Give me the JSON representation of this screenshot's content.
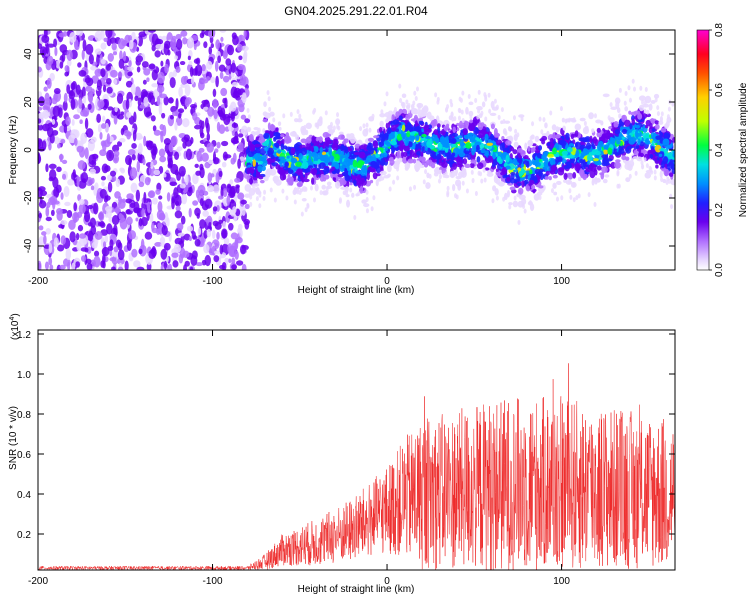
{
  "title": "GN04.2025.291.22.01.R04",
  "colors": {
    "ink": "#000000",
    "snr_line": "#ee2a2a",
    "colormap": [
      "#ffffff",
      "#e8d8ff",
      "#b070ff",
      "#6a00ee",
      "#2020ff",
      "#0090ff",
      "#00e0e0",
      "#00ff40",
      "#c0ff00",
      "#ffd000",
      "#ff5000",
      "#ff0020",
      "#ff00d0"
    ]
  },
  "chart_data": [
    {
      "type": "heatmap",
      "name": "spectrogram",
      "xlabel": "Height of straight line (km)",
      "ylabel": "Frequency (Hz)",
      "xlim": [
        -200,
        165
      ],
      "ylim": [
        -50,
        50
      ],
      "xticks": [
        "-200",
        "-100",
        "0",
        "100"
      ],
      "yticks": [
        "-40",
        "-20",
        "0",
        "20",
        "40"
      ],
      "noise_region_x": [
        -200,
        -80
      ],
      "signal_band_hz": [
        -12,
        12
      ],
      "colorbar": {
        "label": "Normalized spectral amplitude",
        "range": [
          0.0,
          0.8
        ],
        "ticks": [
          "0.0",
          "0.2",
          "0.4",
          "0.6",
          "0.8"
        ]
      }
    },
    {
      "type": "line",
      "name": "snr",
      "xlabel": "Height of straight line (km)",
      "ylabel": "SNR (10 * v/v)",
      "scale_label": "(x10",
      "scale_exp": "4",
      "scale_close": ")",
      "xlim": [
        -200,
        165
      ],
      "ylim": [
        0.02,
        1.22
      ],
      "xticks": [
        "-200",
        "-100",
        "0",
        "100"
      ],
      "yticks": [
        "0.2",
        "0.4",
        "0.6",
        "0.8",
        "1.0",
        "1.2"
      ],
      "envelope": {
        "x": [
          -200,
          -80,
          -70,
          -60,
          -40,
          -20,
          0,
          10,
          20,
          40,
          60,
          80,
          100,
          120,
          140,
          165
        ],
        "mean": [
          0.03,
          0.03,
          0.06,
          0.12,
          0.16,
          0.22,
          0.32,
          0.38,
          0.4,
          0.42,
          0.44,
          0.45,
          0.45,
          0.43,
          0.42,
          0.4
        ],
        "spread": [
          0.01,
          0.01,
          0.04,
          0.08,
          0.12,
          0.16,
          0.22,
          0.3,
          0.38,
          0.4,
          0.44,
          0.44,
          0.44,
          0.42,
          0.4,
          0.38
        ]
      }
    }
  ]
}
